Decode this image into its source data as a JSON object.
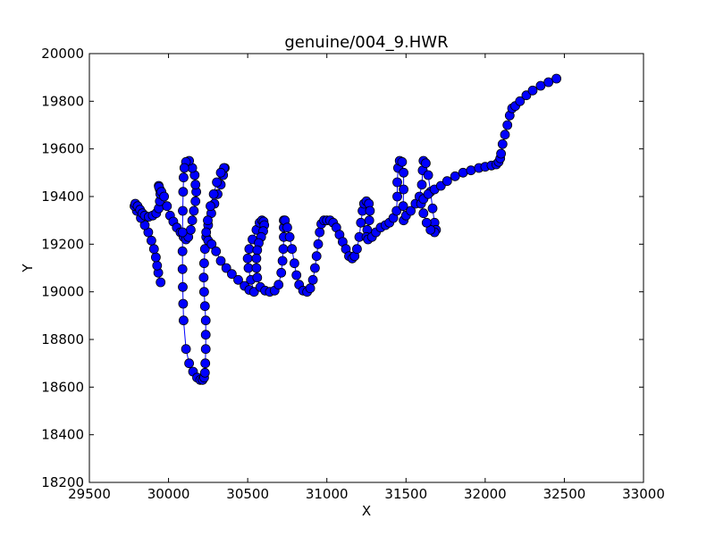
{
  "chart_data": {
    "type": "scatter",
    "title": "genuine/004_9.HWR",
    "xlabel": "X",
    "ylabel": "Y",
    "xlim": [
      29500,
      33000
    ],
    "ylim": [
      18200,
      20000
    ],
    "xticks": [
      29500,
      30000,
      30500,
      31000,
      31500,
      32000,
      32500,
      33000
    ],
    "yticks": [
      18200,
      18400,
      18600,
      18800,
      19000,
      19200,
      19400,
      19600,
      19800,
      20000
    ],
    "grid": false,
    "legend": "none",
    "line_color": "#0000ff",
    "marker_color": "#0000ff",
    "marker_edge_color": "#000000",
    "series": [
      {
        "values": [
          [
            29950,
            19040
          ],
          [
            29935,
            19080
          ],
          [
            29928,
            19110
          ],
          [
            29920,
            19145
          ],
          [
            29908,
            19180
          ],
          [
            29892,
            19215
          ],
          [
            29872,
            19250
          ],
          [
            29850,
            19280
          ],
          [
            29825,
            19310
          ],
          [
            29800,
            19340
          ],
          [
            29785,
            19360
          ],
          [
            29790,
            19370
          ],
          [
            29805,
            19360
          ],
          [
            29820,
            19345
          ],
          [
            29835,
            19330
          ],
          [
            29850,
            19320
          ],
          [
            29875,
            19315
          ],
          [
            29900,
            19320
          ],
          [
            29922,
            19330
          ],
          [
            29938,
            19350
          ],
          [
            29945,
            19380
          ],
          [
            29948,
            19410
          ],
          [
            29945,
            19430
          ],
          [
            29938,
            19445
          ],
          [
            29940,
            19440
          ],
          [
            29955,
            19420
          ],
          [
            29972,
            19400
          ],
          [
            29990,
            19360
          ],
          [
            30010,
            19320
          ],
          [
            30030,
            19295
          ],
          [
            30052,
            19270
          ],
          [
            30075,
            19250
          ],
          [
            30095,
            19230
          ],
          [
            30110,
            19220
          ],
          [
            30125,
            19230
          ],
          [
            30140,
            19260
          ],
          [
            30150,
            19300
          ],
          [
            30160,
            19340
          ],
          [
            30170,
            19380
          ],
          [
            30175,
            19420
          ],
          [
            30170,
            19450
          ],
          [
            30165,
            19490
          ],
          [
            30150,
            19520
          ],
          [
            30130,
            19550
          ],
          [
            30110,
            19545
          ],
          [
            30100,
            19520
          ],
          [
            30095,
            19480
          ],
          [
            30092,
            19420
          ],
          [
            30090,
            19340
          ],
          [
            30088,
            19250
          ],
          [
            30088,
            19170
          ],
          [
            30088,
            19095
          ],
          [
            30090,
            19020
          ],
          [
            30092,
            18950
          ],
          [
            30095,
            18880
          ],
          [
            30110,
            18760
          ],
          [
            30130,
            18700
          ],
          [
            30155,
            18665
          ],
          [
            30180,
            18640
          ],
          [
            30200,
            18630
          ],
          [
            30215,
            18630
          ],
          [
            30225,
            18640
          ],
          [
            30230,
            18660
          ],
          [
            30232,
            18700
          ],
          [
            30235,
            18760
          ],
          [
            30235,
            18820
          ],
          [
            30235,
            18880
          ],
          [
            30230,
            18940
          ],
          [
            30225,
            19000
          ],
          [
            30222,
            19060
          ],
          [
            30225,
            19120
          ],
          [
            30230,
            19180
          ],
          [
            30238,
            19230
          ],
          [
            30250,
            19280
          ],
          [
            30270,
            19330
          ],
          [
            30290,
            19370
          ],
          [
            30310,
            19410
          ],
          [
            30330,
            19450
          ],
          [
            30345,
            19490
          ],
          [
            30355,
            19520
          ],
          [
            30350,
            19520
          ],
          [
            30330,
            19500
          ],
          [
            30305,
            19460
          ],
          [
            30285,
            19410
          ],
          [
            30265,
            19360
          ],
          [
            30248,
            19300
          ],
          [
            30238,
            19250
          ],
          [
            30250,
            19215
          ],
          [
            30272,
            19200
          ],
          [
            30300,
            19170
          ],
          [
            30330,
            19130
          ],
          [
            30365,
            19100
          ],
          [
            30400,
            19075
          ],
          [
            30440,
            19050
          ],
          [
            30480,
            19025
          ],
          [
            30510,
            19008
          ],
          [
            30540,
            19000
          ],
          [
            30520,
            19050
          ],
          [
            30505,
            19100
          ],
          [
            30500,
            19140
          ],
          [
            30510,
            19180
          ],
          [
            30530,
            19220
          ],
          [
            30555,
            19260
          ],
          [
            30575,
            19290
          ],
          [
            30590,
            19300
          ],
          [
            30600,
            19295
          ],
          [
            30605,
            19280
          ],
          [
            30598,
            19255
          ],
          [
            30585,
            19230
          ],
          [
            30570,
            19205
          ],
          [
            30560,
            19175
          ],
          [
            30555,
            19140
          ],
          [
            30555,
            19100
          ],
          [
            30560,
            19060
          ],
          [
            30580,
            19020
          ],
          [
            30610,
            19005
          ],
          [
            30640,
            19000
          ],
          [
            30670,
            19005
          ],
          [
            30695,
            19030
          ],
          [
            30712,
            19080
          ],
          [
            30720,
            19130
          ],
          [
            30725,
            19180
          ],
          [
            30728,
            19230
          ],
          [
            30728,
            19270
          ],
          [
            30728,
            19300
          ],
          [
            30735,
            19300
          ],
          [
            30750,
            19270
          ],
          [
            30765,
            19230
          ],
          [
            30780,
            19180
          ],
          [
            30795,
            19120
          ],
          [
            30808,
            19070
          ],
          [
            30825,
            19030
          ],
          [
            30850,
            19005
          ],
          [
            30875,
            19000
          ],
          [
            30895,
            19015
          ],
          [
            30912,
            19050
          ],
          [
            30925,
            19100
          ],
          [
            30935,
            19150
          ],
          [
            30945,
            19200
          ],
          [
            30955,
            19250
          ],
          [
            30965,
            19285
          ],
          [
            30982,
            19300
          ],
          [
            31000,
            19300
          ],
          [
            31020,
            19300
          ],
          [
            31040,
            19290
          ],
          [
            31060,
            19270
          ],
          [
            31080,
            19240
          ],
          [
            31100,
            19210
          ],
          [
            31120,
            19180
          ],
          [
            31140,
            19150
          ],
          [
            31160,
            19140
          ],
          [
            31175,
            19150
          ],
          [
            31190,
            19180
          ],
          [
            31205,
            19230
          ],
          [
            31215,
            19290
          ],
          [
            31225,
            19340
          ],
          [
            31235,
            19370
          ],
          [
            31250,
            19380
          ],
          [
            31265,
            19370
          ],
          [
            31272,
            19340
          ],
          [
            31268,
            19300
          ],
          [
            31255,
            19260
          ],
          [
            31250,
            19230
          ],
          [
            31260,
            19220
          ],
          [
            31285,
            19230
          ],
          [
            31310,
            19250
          ],
          [
            31340,
            19270
          ],
          [
            31370,
            19280
          ],
          [
            31395,
            19290
          ],
          [
            31420,
            19310
          ],
          [
            31440,
            19340
          ],
          [
            31445,
            19400
          ],
          [
            31445,
            19460
          ],
          [
            31450,
            19520
          ],
          [
            31460,
            19550
          ],
          [
            31475,
            19545
          ],
          [
            31485,
            19500
          ],
          [
            31485,
            19430
          ],
          [
            31482,
            19360
          ],
          [
            31485,
            19300
          ],
          [
            31500,
            19320
          ],
          [
            31530,
            19340
          ],
          [
            31560,
            19370
          ],
          [
            31585,
            19400
          ],
          [
            31600,
            19450
          ],
          [
            31605,
            19510
          ],
          [
            31610,
            19550
          ],
          [
            31625,
            19540
          ],
          [
            31640,
            19490
          ],
          [
            31655,
            19420
          ],
          [
            31668,
            19350
          ],
          [
            31680,
            19290
          ],
          [
            31690,
            19260
          ],
          [
            31680,
            19250
          ],
          [
            31655,
            19260
          ],
          [
            31630,
            19290
          ],
          [
            31610,
            19330
          ],
          [
            31595,
            19370
          ],
          [
            31610,
            19390
          ],
          [
            31640,
            19410
          ],
          [
            31680,
            19430
          ],
          [
            31720,
            19445
          ],
          [
            31760,
            19465
          ],
          [
            31810,
            19485
          ],
          [
            31860,
            19500
          ],
          [
            31910,
            19510
          ],
          [
            31960,
            19520
          ],
          [
            32000,
            19525
          ],
          [
            32040,
            19530
          ],
          [
            32070,
            19535
          ],
          [
            32085,
            19545
          ],
          [
            32095,
            19560
          ],
          [
            32100,
            19580
          ],
          [
            32110,
            19620
          ],
          [
            32125,
            19660
          ],
          [
            32140,
            19700
          ],
          [
            32155,
            19740
          ],
          [
            32170,
            19770
          ],
          [
            32190,
            19780
          ],
          [
            32220,
            19800
          ],
          [
            32260,
            19825
          ],
          [
            32300,
            19845
          ],
          [
            32350,
            19865
          ],
          [
            32400,
            19880
          ],
          [
            32450,
            19895
          ]
        ]
      }
    ]
  }
}
